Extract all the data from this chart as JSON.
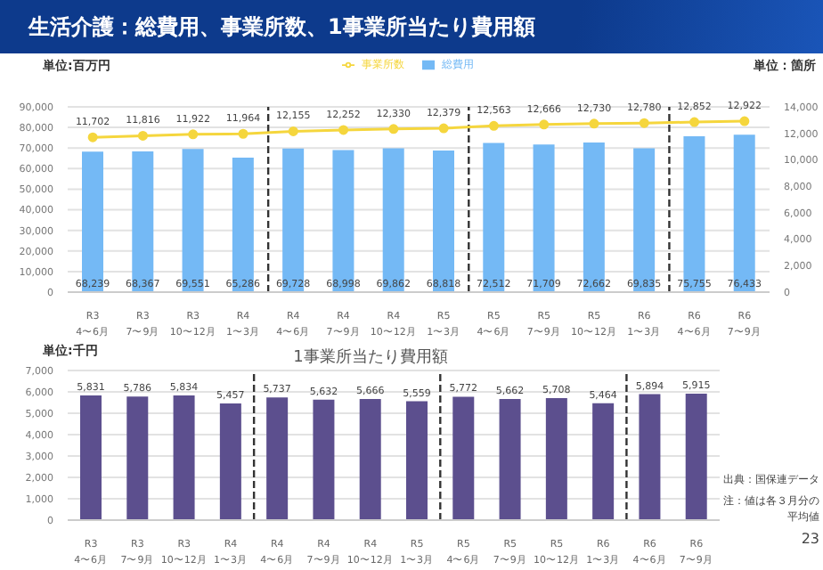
{
  "chart_data": [
    {
      "type": "bar",
      "title": "生活介護：総費用、事業所数、1事業所当たり費用額",
      "ylabel": "単位:百万円",
      "y2label": "単位：箇所",
      "categories": [
        "R3\n4〜6月",
        "R3\n7〜9月",
        "R3\n10〜12月",
        "R4\n1〜3月",
        "R4\n4〜6月",
        "R4\n7〜9月",
        "R4\n10〜12月",
        "R5\n1〜3月",
        "R5\n4〜6月",
        "R5\n7〜9月",
        "R5\n10〜12月",
        "R6\n1〜3月",
        "R6\n4〜6月",
        "R6\n7〜9月"
      ],
      "series": [
        {
          "name": "総費用",
          "color": "#74b9f5",
          "values": [
            68239,
            68367,
            69551,
            65286,
            69728,
            68998,
            69862,
            68818,
            72512,
            71709,
            72662,
            69835,
            75755,
            76433
          ],
          "value_labels": [
            "68,239",
            "68,367",
            "69,551",
            "65,286",
            "69,728",
            "68,998",
            "69,862",
            "68,818",
            "72,512",
            "71,709",
            "72,662",
            "69,835",
            "75,755",
            "76,433"
          ]
        },
        {
          "name": "事業所数",
          "type": "line",
          "axis": "y2",
          "color": "#f5d63d",
          "marker": "circle",
          "values": [
            11702,
            11816,
            11922,
            11964,
            12155,
            12252,
            12330,
            12379,
            12563,
            12666,
            12730,
            12780,
            12852,
            12922
          ],
          "value_labels": [
            "11,702",
            "11,816",
            "11,922",
            "11,964",
            "12,155",
            "12,252",
            "12,330",
            "12,379",
            "12,563",
            "12,666",
            "12,730",
            "12,780",
            "12,852",
            "12,922"
          ]
        }
      ],
      "ylim": [
        0,
        90000
      ],
      "yticks": [
        {
          "value": 0,
          "label": "0"
        },
        {
          "value": 10000,
          "label": "10,000"
        },
        {
          "value": 20000,
          "label": "20,000"
        },
        {
          "value": 30000,
          "label": "30,000"
        },
        {
          "value": 40000,
          "label": "40,000"
        },
        {
          "value": 50000,
          "label": "50,000"
        },
        {
          "value": 60000,
          "label": "60,000"
        },
        {
          "value": 70000,
          "label": "70,000"
        },
        {
          "value": 80000,
          "label": "80,000"
        },
        {
          "value": 90000,
          "label": "90,000"
        }
      ],
      "y2lim": [
        0,
        14000
      ],
      "y2ticks": [
        {
          "value": 0,
          "label": "0"
        },
        {
          "value": 2000,
          "label": "2,000"
        },
        {
          "value": 4000,
          "label": "4,000"
        },
        {
          "value": 6000,
          "label": "6,000"
        },
        {
          "value": 8000,
          "label": "8,000"
        },
        {
          "value": 10000,
          "label": "10,000"
        },
        {
          "value": 12000,
          "label": "12,000"
        },
        {
          "value": 14000,
          "label": "14,000"
        }
      ],
      "grid": "y",
      "legend": "top"
    },
    {
      "type": "bar",
      "subtitle": "1事業所当たり費用額",
      "ylabel": "単位:千円",
      "categories": [
        "R3\n4〜6月",
        "R3\n7〜9月",
        "R3\n10〜12月",
        "R4\n1〜3月",
        "R4\n4〜6月",
        "R4\n7〜9月",
        "R4\n10〜12月",
        "R5\n1〜3月",
        "R5\n4〜6月",
        "R5\n7〜9月",
        "R5\n10〜12月",
        "R6\n1〜3月",
        "R6\n4〜6月",
        "R6\n7〜9月"
      ],
      "series": [
        {
          "color": "#5c4f8e",
          "values": [
            5831,
            5786,
            5834,
            5457,
            5737,
            5632,
            5666,
            5559,
            5772,
            5662,
            5708,
            5464,
            5894,
            5915
          ],
          "value_labels": [
            "5,831",
            "5,786",
            "5,834",
            "5,457",
            "5,737",
            "5,632",
            "5,666",
            "5,559",
            "5,772",
            "5,662",
            "5,708",
            "5,464",
            "5,894",
            "5,915"
          ]
        }
      ],
      "ylim": [
        0,
        7000
      ],
      "yticks": [
        {
          "value": 0,
          "label": "0"
        },
        {
          "value": 1000,
          "label": "1,000"
        },
        {
          "value": 2000,
          "label": "2,000"
        },
        {
          "value": 3000,
          "label": "3,000"
        },
        {
          "value": 4000,
          "label": "4,000"
        },
        {
          "value": 5000,
          "label": "5,000"
        },
        {
          "value": 6000,
          "label": "6,000"
        },
        {
          "value": 7000,
          "label": "7,000"
        }
      ],
      "grid": "y",
      "annotations": [
        "出典：国保連データ",
        "注：値は各３月分の平均値",
        "23"
      ]
    }
  ]
}
